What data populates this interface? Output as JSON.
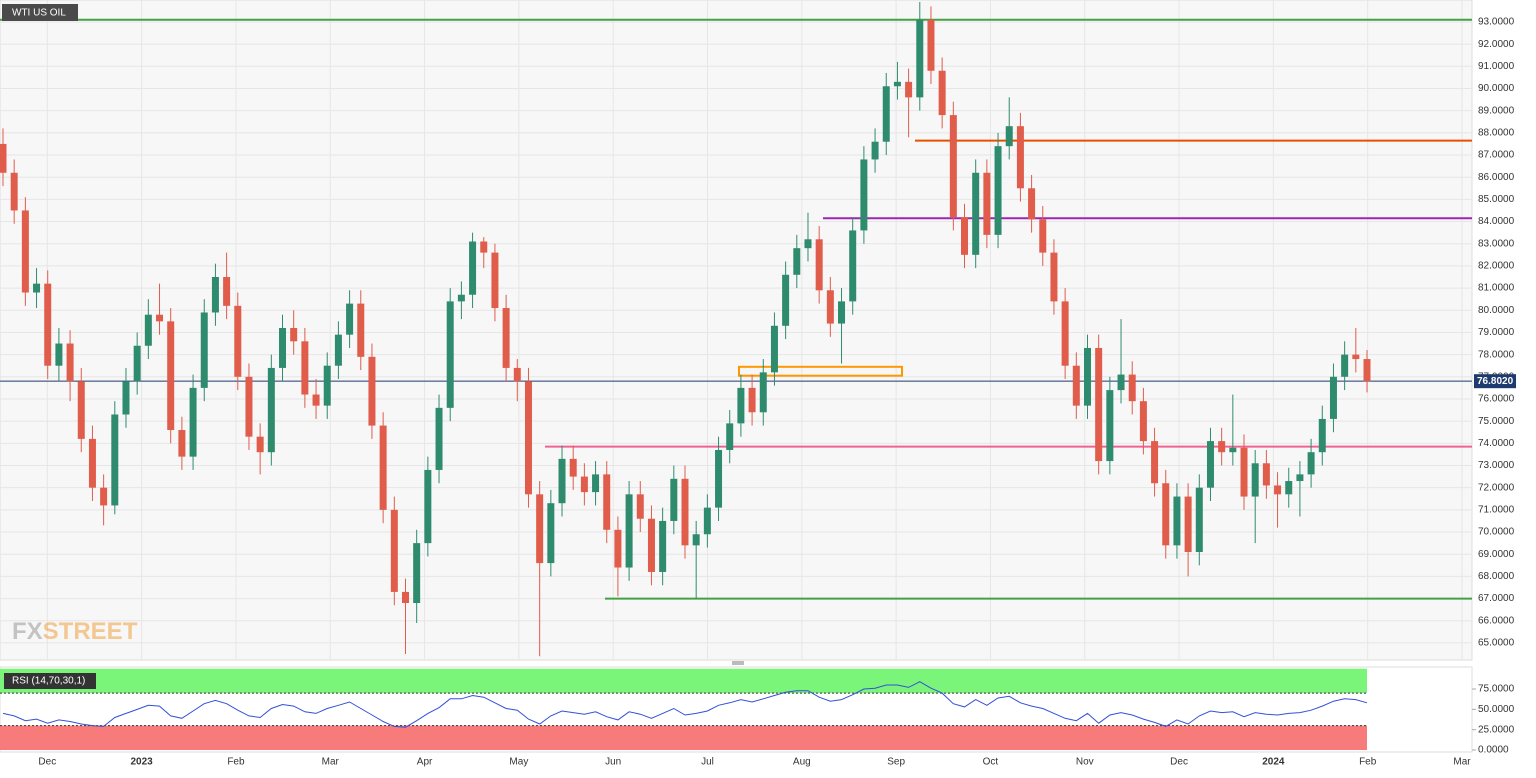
{
  "chart_data": {
    "type": "candlestick",
    "title": "WTI US OIL",
    "brand": {
      "prefix": "FX",
      "suffix": "STREET"
    },
    "up_color": "#2e8b6e",
    "down_color": "#e05c4b",
    "ylim": [
      64.23,
      93.99
    ],
    "yticks": [
      {
        "value": 65,
        "label": "65.0000"
      },
      {
        "value": 66,
        "label": "66.0000"
      },
      {
        "value": 67,
        "label": "67.0000"
      },
      {
        "value": 68,
        "label": "68.0000"
      },
      {
        "value": 69,
        "label": "69.0000"
      },
      {
        "value": 70,
        "label": "70.0000"
      },
      {
        "value": 71,
        "label": "71.0000"
      },
      {
        "value": 72,
        "label": "72.0000"
      },
      {
        "value": 73,
        "label": "73.0000"
      },
      {
        "value": 74,
        "label": "74.0000"
      },
      {
        "value": 75,
        "label": "75.0000"
      },
      {
        "value": 76,
        "label": "76.0000"
      },
      {
        "value": 77,
        "label": "77.0000"
      },
      {
        "value": 78,
        "label": "78.0000"
      },
      {
        "value": 79,
        "label": "79.0000"
      },
      {
        "value": 80,
        "label": "80.0000"
      },
      {
        "value": 81,
        "label": "81.0000"
      },
      {
        "value": 82,
        "label": "82.0000"
      },
      {
        "value": 83,
        "label": "83.0000"
      },
      {
        "value": 84,
        "label": "84.0000"
      },
      {
        "value": 85,
        "label": "85.0000"
      },
      {
        "value": 86,
        "label": "86.0000"
      },
      {
        "value": 87,
        "label": "87.0000"
      },
      {
        "value": 88,
        "label": "88.0000"
      },
      {
        "value": 89,
        "label": "89.0000"
      },
      {
        "value": 90,
        "label": "90.0000"
      },
      {
        "value": 91,
        "label": "91.0000"
      },
      {
        "value": 92,
        "label": "92.0000"
      },
      {
        "value": 93,
        "label": "93.0000"
      }
    ],
    "xlim": [
      "2022-11",
      "2024-03"
    ],
    "xticks": [
      {
        "value": "2022-12",
        "label": "Dec"
      },
      {
        "value": "2023-01",
        "label": "2023"
      },
      {
        "value": "2023-02",
        "label": "Feb"
      },
      {
        "value": "2023-03",
        "label": "Mar"
      },
      {
        "value": "2023-04",
        "label": "Apr"
      },
      {
        "value": "2023-05",
        "label": "May"
      },
      {
        "value": "2023-06",
        "label": "Jun"
      },
      {
        "value": "2023-07",
        "label": "Jul"
      },
      {
        "value": "2023-08",
        "label": "Aug"
      },
      {
        "value": "2023-09",
        "label": "Sep"
      },
      {
        "value": "2023-10",
        "label": "Oct"
      },
      {
        "value": "2023-11",
        "label": "Nov"
      },
      {
        "value": "2023-12",
        "label": "Dec"
      },
      {
        "value": "2024-01",
        "label": "2024"
      },
      {
        "value": "2024-02",
        "label": "Feb"
      },
      {
        "value": "2024-03",
        "label": "Mar"
      }
    ],
    "levels": [
      {
        "value": 93.1,
        "color": "#43a047"
      },
      {
        "value": 87.65,
        "color": "#e65100"
      },
      {
        "value": 84.15,
        "color": "#9c27b0"
      },
      {
        "value": 73.85,
        "color": "#f06292"
      },
      {
        "value": 67.0,
        "color": "#43a047"
      }
    ],
    "zone": {
      "top": 77.45,
      "bottom": 77.05,
      "color": "#ff9800"
    },
    "last_price": {
      "value": 76.802,
      "label": "76.8020",
      "color": "#1e3a6e"
    },
    "ohlc": [
      [
        87.5,
        88.2,
        85.6,
        86.2
      ],
      [
        86.2,
        86.8,
        83.9,
        84.5
      ],
      [
        84.5,
        85.1,
        80.2,
        80.8
      ],
      [
        80.8,
        81.9,
        80.1,
        81.2
      ],
      [
        81.2,
        81.8,
        76.9,
        77.5
      ],
      [
        77.5,
        79.2,
        76.8,
        78.5
      ],
      [
        78.5,
        79.1,
        75.9,
        76.8
      ],
      [
        76.8,
        77.4,
        73.6,
        74.2
      ],
      [
        74.2,
        74.8,
        71.4,
        72.0
      ],
      [
        72.0,
        72.6,
        70.3,
        71.2
      ],
      [
        71.2,
        75.9,
        70.8,
        75.3
      ],
      [
        75.3,
        77.4,
        74.7,
        76.8
      ],
      [
        76.8,
        79.0,
        76.2,
        78.4
      ],
      [
        78.4,
        80.5,
        77.8,
        79.8
      ],
      [
        79.8,
        81.2,
        78.9,
        79.5
      ],
      [
        79.5,
        80.1,
        74.0,
        74.6
      ],
      [
        74.6,
        75.2,
        72.8,
        73.4
      ],
      [
        73.4,
        77.1,
        72.8,
        76.5
      ],
      [
        76.5,
        80.5,
        75.9,
        79.9
      ],
      [
        79.9,
        82.1,
        79.3,
        81.5
      ],
      [
        81.5,
        82.6,
        79.6,
        80.2
      ],
      [
        80.2,
        80.8,
        76.4,
        77.0
      ],
      [
        77.0,
        77.6,
        73.7,
        74.3
      ],
      [
        74.3,
        74.9,
        72.6,
        73.6
      ],
      [
        73.6,
        78.0,
        73.0,
        77.4
      ],
      [
        77.4,
        79.8,
        76.8,
        79.2
      ],
      [
        79.2,
        80.0,
        78.0,
        78.6
      ],
      [
        78.6,
        79.2,
        75.6,
        76.2
      ],
      [
        76.2,
        76.9,
        75.1,
        75.7
      ],
      [
        75.7,
        78.1,
        75.1,
        77.5
      ],
      [
        77.5,
        79.5,
        76.9,
        78.9
      ],
      [
        78.9,
        80.9,
        78.3,
        80.3
      ],
      [
        80.3,
        80.9,
        77.3,
        77.9
      ],
      [
        77.9,
        78.5,
        74.2,
        74.8
      ],
      [
        74.8,
        75.4,
        70.4,
        71.0
      ],
      [
        71.0,
        71.6,
        66.7,
        67.3
      ],
      [
        67.3,
        67.9,
        64.5,
        66.8
      ],
      [
        66.8,
        70.1,
        65.9,
        69.5
      ],
      [
        69.5,
        73.4,
        68.9,
        72.8
      ],
      [
        72.8,
        76.2,
        72.2,
        75.6
      ],
      [
        75.6,
        81.0,
        75.0,
        80.4
      ],
      [
        80.4,
        81.3,
        79.6,
        80.7
      ],
      [
        80.7,
        83.5,
        80.1,
        83.1
      ],
      [
        83.1,
        83.3,
        81.9,
        82.6
      ],
      [
        82.6,
        83.0,
        79.5,
        80.1
      ],
      [
        80.1,
        80.7,
        76.8,
        77.4
      ],
      [
        77.4,
        77.8,
        75.9,
        76.8
      ],
      [
        76.8,
        77.4,
        71.1,
        71.7
      ],
      [
        71.7,
        72.3,
        64.4,
        68.6
      ],
      [
        68.6,
        71.9,
        68.0,
        71.3
      ],
      [
        71.3,
        73.9,
        70.7,
        73.3
      ],
      [
        73.3,
        73.9,
        71.9,
        72.5
      ],
      [
        72.5,
        73.1,
        71.2,
        71.8
      ],
      [
        71.8,
        73.2,
        71.2,
        72.6
      ],
      [
        72.6,
        73.2,
        69.5,
        70.1
      ],
      [
        70.1,
        70.7,
        67.1,
        68.4
      ],
      [
        68.4,
        72.3,
        67.8,
        71.7
      ],
      [
        71.7,
        72.3,
        70.0,
        70.6
      ],
      [
        70.6,
        71.2,
        67.6,
        68.2
      ],
      [
        68.2,
        71.1,
        67.6,
        70.5
      ],
      [
        70.5,
        73.0,
        69.9,
        72.4
      ],
      [
        72.4,
        73.0,
        68.8,
        69.4
      ],
      [
        69.4,
        70.5,
        67.0,
        69.9
      ],
      [
        69.9,
        71.7,
        69.3,
        71.1
      ],
      [
        71.1,
        74.3,
        70.5,
        73.7
      ],
      [
        73.7,
        75.5,
        73.1,
        74.9
      ],
      [
        74.9,
        77.1,
        74.3,
        76.5
      ],
      [
        76.5,
        77.1,
        74.8,
        75.4
      ],
      [
        75.4,
        77.8,
        74.8,
        77.2
      ],
      [
        77.2,
        79.9,
        76.6,
        79.3
      ],
      [
        79.3,
        82.2,
        78.7,
        81.6
      ],
      [
        81.6,
        83.4,
        81.0,
        82.8
      ],
      [
        82.8,
        84.4,
        82.2,
        83.2
      ],
      [
        83.2,
        83.8,
        80.3,
        80.9
      ],
      [
        80.9,
        81.5,
        78.8,
        79.4
      ],
      [
        79.4,
        81.0,
        77.6,
        80.4
      ],
      [
        80.4,
        84.2,
        79.8,
        83.6
      ],
      [
        83.6,
        87.4,
        83.0,
        86.8
      ],
      [
        86.8,
        88.2,
        86.2,
        87.6
      ],
      [
        87.6,
        90.7,
        87.0,
        90.1
      ],
      [
        90.1,
        91.2,
        89.5,
        90.3
      ],
      [
        90.3,
        90.9,
        87.8,
        89.6
      ],
      [
        89.6,
        93.9,
        89.0,
        93.1
      ],
      [
        93.1,
        93.7,
        90.2,
        90.8
      ],
      [
        90.8,
        91.4,
        88.2,
        88.8
      ],
      [
        88.8,
        89.4,
        83.6,
        84.2
      ],
      [
        84.2,
        84.8,
        81.9,
        82.5
      ],
      [
        82.5,
        86.8,
        81.9,
        86.2
      ],
      [
        86.2,
        86.8,
        82.8,
        83.4
      ],
      [
        83.4,
        88.0,
        82.8,
        87.4
      ],
      [
        87.4,
        89.6,
        86.8,
        88.3
      ],
      [
        88.3,
        88.9,
        84.9,
        85.5
      ],
      [
        85.5,
        86.1,
        83.5,
        84.1
      ],
      [
        84.1,
        84.7,
        82.0,
        82.6
      ],
      [
        82.6,
        83.2,
        79.8,
        80.4
      ],
      [
        80.4,
        81.0,
        76.9,
        77.5
      ],
      [
        77.5,
        78.1,
        75.1,
        75.7
      ],
      [
        75.7,
        78.9,
        75.1,
        78.3
      ],
      [
        78.3,
        78.9,
        72.6,
        73.2
      ],
      [
        73.2,
        77.0,
        72.6,
        76.4
      ],
      [
        76.4,
        79.6,
        75.8,
        77.1
      ],
      [
        77.1,
        77.7,
        75.3,
        75.9
      ],
      [
        75.9,
        76.5,
        73.5,
        74.1
      ],
      [
        74.1,
        74.7,
        71.6,
        72.2
      ],
      [
        72.2,
        72.8,
        68.8,
        69.4
      ],
      [
        69.4,
        72.2,
        68.8,
        71.6
      ],
      [
        71.6,
        72.2,
        68.0,
        69.1
      ],
      [
        69.1,
        72.6,
        68.5,
        72.0
      ],
      [
        72.0,
        74.7,
        71.4,
        74.1
      ],
      [
        74.1,
        74.7,
        73.0,
        73.6
      ],
      [
        73.6,
        76.2,
        73.0,
        73.8
      ],
      [
        73.8,
        74.4,
        71.0,
        71.6
      ],
      [
        71.6,
        73.7,
        69.5,
        73.1
      ],
      [
        73.1,
        73.7,
        71.5,
        72.1
      ],
      [
        72.1,
        72.7,
        70.2,
        71.7
      ],
      [
        71.7,
        72.9,
        71.1,
        72.3
      ],
      [
        72.3,
        73.2,
        70.7,
        72.6
      ],
      [
        72.6,
        74.2,
        72.0,
        73.6
      ],
      [
        73.6,
        75.7,
        73.0,
        75.1
      ],
      [
        75.1,
        77.6,
        74.5,
        77.0
      ],
      [
        77.0,
        78.6,
        76.4,
        78.0
      ],
      [
        78.0,
        79.2,
        77.2,
        77.8
      ],
      [
        77.8,
        78.2,
        76.3,
        76.8
      ]
    ],
    "rsi": {
      "label": "RSI (14,70,30,1)",
      "color": "#3350d8",
      "ylim": [
        0,
        100
      ],
      "upper": 70,
      "lower": 30,
      "upper_color": "#7af57a",
      "lower_color": "#f77b7b",
      "yticks": [
        {
          "value": 0,
          "label": "0.0000"
        },
        {
          "value": 25,
          "label": "25.0000"
        },
        {
          "value": 50,
          "label": "50.0000"
        },
        {
          "value": 75,
          "label": "75.0000"
        }
      ],
      "values": [
        45,
        42,
        36,
        38,
        33,
        37,
        35,
        32,
        30,
        29,
        40,
        45,
        50,
        55,
        54,
        42,
        39,
        48,
        57,
        61,
        57,
        49,
        42,
        40,
        51,
        56,
        54,
        47,
        45,
        51,
        55,
        59,
        51,
        43,
        35,
        29,
        28,
        36,
        45,
        52,
        63,
        63,
        67,
        65,
        58,
        51,
        49,
        38,
        32,
        42,
        48,
        46,
        44,
        47,
        41,
        37,
        47,
        44,
        39,
        45,
        51,
        43,
        45,
        48,
        55,
        58,
        62,
        59,
        63,
        67,
        71,
        73,
        73,
        65,
        60,
        62,
        68,
        75,
        76,
        80,
        80,
        77,
        84,
        76,
        70,
        57,
        53,
        62,
        55,
        64,
        66,
        58,
        54,
        51,
        45,
        39,
        36,
        45,
        33,
        43,
        46,
        43,
        38,
        34,
        29,
        37,
        32,
        42,
        48,
        46,
        47,
        41,
        46,
        44,
        43,
        45,
        46,
        49,
        54,
        60,
        63,
        62,
        58
      ]
    }
  }
}
